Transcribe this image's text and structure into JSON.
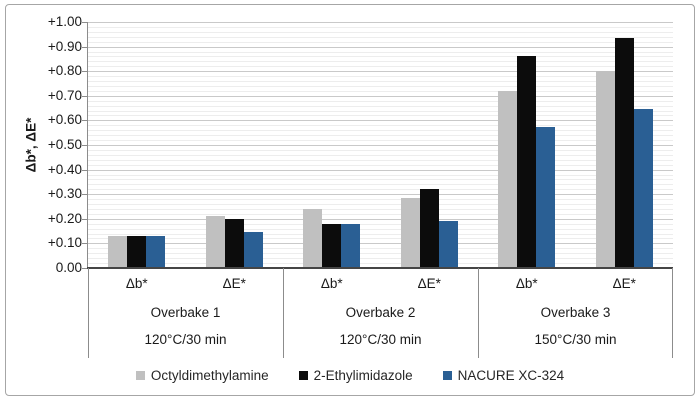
{
  "figure": {
    "border_color": "#a6a6a6",
    "background": "#ffffff"
  },
  "chart_data": {
    "type": "bar",
    "title": "",
    "xlabel": "",
    "ylabel": "Δb*, ΔE*",
    "ylim": [
      0,
      1.0
    ],
    "y_major_step": 0.1,
    "y_minor_step": 0.02,
    "grid": "horizontal major + faint minor",
    "legend_position": "bottom",
    "y_tick_labels": [
      "+1.00",
      "+0.90",
      "+0.80",
      "+0.70",
      "+0.60",
      "+0.50",
      "+0.40",
      "+0.30",
      "+0.20",
      "+0.10",
      "0.00"
    ],
    "groups": [
      {
        "label": "Overbake 1",
        "sublabel": "120°C/30 min",
        "categories": [
          "Δb*",
          "ΔE*"
        ]
      },
      {
        "label": "Overbake 2",
        "sublabel": "120°C/30 min",
        "categories": [
          "Δb*",
          "ΔE*"
        ]
      },
      {
        "label": "Overbake 3",
        "sublabel": "150°C/30 min",
        "categories": [
          "Δb*",
          "ΔE*"
        ]
      }
    ],
    "category_order": [
      "Overbake 1 Δb*",
      "Overbake 1 ΔE*",
      "Overbake 2 Δb*",
      "Overbake 2 ΔE*",
      "Overbake 3 Δb*",
      "Overbake 3 ΔE*"
    ],
    "series": [
      {
        "name": "Octyldimethylamine",
        "color": "#c0c0c0",
        "values": [
          0.13,
          0.21,
          0.24,
          0.285,
          0.72,
          0.8
        ]
      },
      {
        "name": "2-Ethylimidazole",
        "color": "#0c0c0c",
        "values": [
          0.13,
          0.2,
          0.18,
          0.32,
          0.86,
          0.935
        ]
      },
      {
        "name": "NACURE XC-324",
        "color": "#2a5f94",
        "values": [
          0.13,
          0.145,
          0.18,
          0.19,
          0.575,
          0.645
        ]
      }
    ],
    "axis_colors": {
      "major_grid": "#c9c9c9",
      "minor_grid": "#ededed",
      "axis_line": "#8c8c8c",
      "baseline": "#454545"
    }
  }
}
